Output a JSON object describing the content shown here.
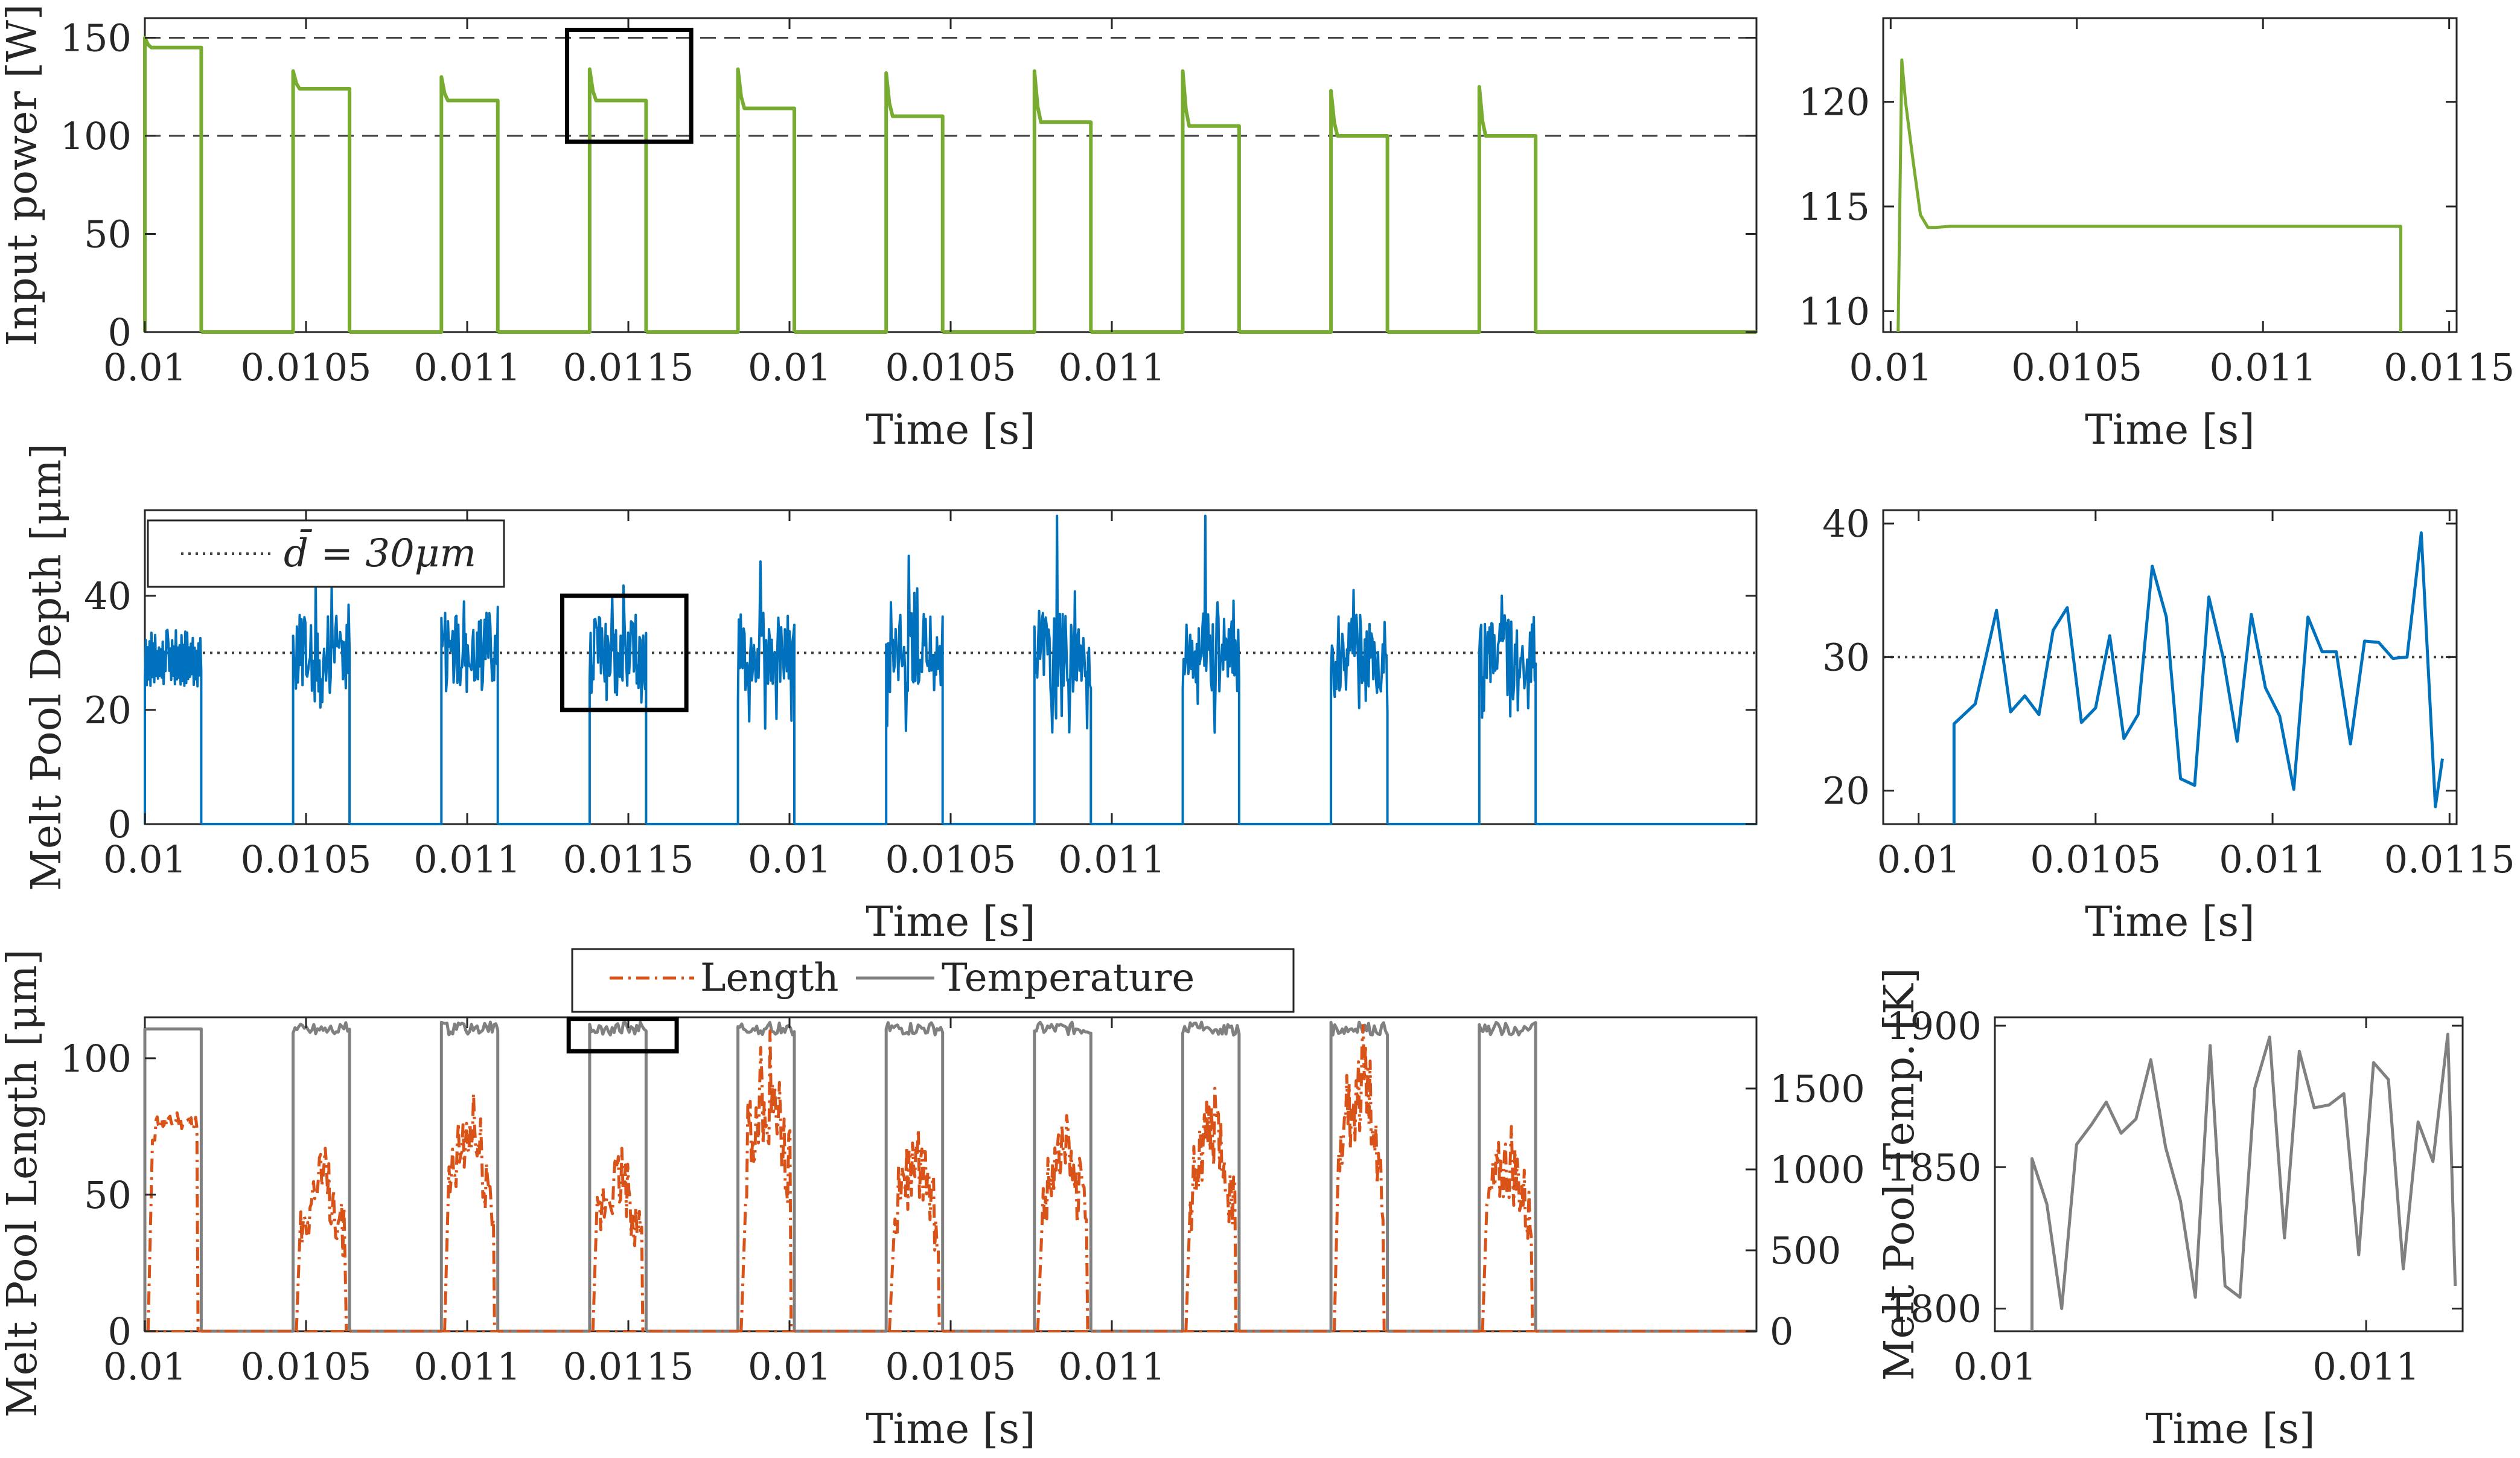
{
  "figure": {
    "colors": {
      "power": "#77ac30",
      "depth": "#0072bd",
      "length": "#d95319",
      "temperature": "#808080",
      "reference": "#404040",
      "axes": "#262626"
    },
    "highlight_box_color": "#000000"
  },
  "chart_data": [
    {
      "id": "power-main",
      "type": "line",
      "title": "",
      "xlabel": "Time [s]",
      "ylabel": "Input power [W]",
      "xlim": [
        0,
        1.0
      ],
      "ylim": [
        0,
        160
      ],
      "xticks": [
        {
          "at": 0.0,
          "label": "0.01"
        },
        {
          "at": 0.1,
          "label": "0.0105"
        },
        {
          "at": 0.2,
          "label": "0.011"
        },
        {
          "at": 0.3,
          "label": "0.0115"
        },
        {
          "at": 0.4,
          "label": "0.01"
        },
        {
          "at": 0.5,
          "label": "0.0105"
        },
        {
          "at": 0.6,
          "label": "0.011"
        }
      ],
      "yticks": [
        0,
        50,
        100,
        150
      ],
      "reference_lines": [
        150,
        100
      ],
      "pulse_starts": [
        0.0,
        0.092,
        0.184,
        0.276,
        0.368,
        0.46,
        0.552,
        0.644,
        0.736,
        0.828
      ],
      "pulse_width": 0.035,
      "pulse_peaks": [
        150,
        133,
        130,
        134,
        134,
        132,
        133,
        133,
        123,
        125
      ],
      "pulse_plateaus": [
        145,
        124,
        118,
        118,
        114,
        110,
        107,
        105,
        100,
        100
      ],
      "zoom_box": {
        "x": [
          0.262,
          0.339
        ],
        "y": [
          97,
          154
        ]
      }
    },
    {
      "id": "power-zoom",
      "type": "line",
      "xlabel": "Time [s]",
      "ylabel": "",
      "xlim": [
        0.00998,
        0.01152
      ],
      "ylim": [
        109,
        124
      ],
      "xticks": [
        {
          "at": 0.01,
          "label": "0.01"
        },
        {
          "at": 0.0105,
          "label": "0.0105"
        },
        {
          "at": 0.011,
          "label": "0.011"
        },
        {
          "at": 0.0115,
          "label": "0.0115"
        }
      ],
      "yticks": [
        110,
        115,
        120
      ],
      "x": [
        0.01002,
        0.01003,
        0.01004,
        0.01006,
        0.01008,
        0.0101,
        0.01012,
        0.01016,
        0.0103,
        0.0106,
        0.011,
        0.0113,
        0.01137,
        0.01137
      ],
      "values": [
        100,
        122,
        120,
        117.2,
        114.6,
        114.0,
        114.0,
        114.05,
        114.05,
        114.05,
        114.05,
        114.05,
        114.05,
        100
      ]
    },
    {
      "id": "depth-main",
      "type": "line",
      "xlabel": "Time [s]",
      "ylabel": "Melt Pool Depth [μm]",
      "xlim": [
        0,
        1.0
      ],
      "ylim": [
        0,
        55
      ],
      "xticks": [
        {
          "at": 0.0,
          "label": "0.01"
        },
        {
          "at": 0.1,
          "label": "0.0105"
        },
        {
          "at": 0.2,
          "label": "0.011"
        },
        {
          "at": 0.3,
          "label": "0.0115"
        },
        {
          "at": 0.4,
          "label": "0.01"
        },
        {
          "at": 0.5,
          "label": "0.0105"
        },
        {
          "at": 0.6,
          "label": "0.011"
        }
      ],
      "yticks": [
        0,
        20,
        40
      ],
      "reference_line": 30,
      "legend": {
        "label_prefix": "d̄ = 30",
        "label_unit": "μm",
        "position": "top-left"
      },
      "pulse_starts": [
        0.0,
        0.092,
        0.184,
        0.276,
        0.368,
        0.46,
        0.552,
        0.644,
        0.736,
        0.828
      ],
      "pulse_width": 0.035,
      "pulse_peaks": [
        34,
        42,
        39,
        40,
        46,
        47,
        54,
        54,
        41,
        40
      ],
      "zoom_box": {
        "x": [
          0.259,
          0.336
        ],
        "y": [
          20,
          40
        ]
      }
    },
    {
      "id": "depth-zoom",
      "type": "line",
      "xlabel": "Time [s]",
      "ylabel": "",
      "xlim": [
        0.0099,
        0.01152
      ],
      "ylim": [
        17.5,
        41
      ],
      "xticks": [
        {
          "at": 0.01,
          "label": "0.01"
        },
        {
          "at": 0.0105,
          "label": "0.0105"
        },
        {
          "at": 0.011,
          "label": "0.011"
        },
        {
          "at": 0.0115,
          "label": "0.0115"
        }
      ],
      "yticks": [
        20,
        30,
        40
      ],
      "reference_line": 30,
      "x": [
        0.0101,
        0.0101,
        0.01016,
        0.01022,
        0.01026,
        0.0103,
        0.01034,
        0.01038,
        0.01042,
        0.01046,
        0.0105,
        0.01054,
        0.01058,
        0.01062,
        0.01066,
        0.0107,
        0.01074,
        0.01078,
        0.01082,
        0.01086,
        0.0109,
        0.01094,
        0.01098,
        0.01102,
        0.01106,
        0.0111,
        0.01114,
        0.01118,
        0.01122,
        0.01126,
        0.0113,
        0.01134,
        0.01138,
        0.01142,
        0.01146,
        0.01148
      ],
      "values": [
        17.5,
        25.0,
        26.5,
        33.5,
        25.9,
        27.1,
        25.7,
        32.0,
        33.7,
        25.1,
        26.2,
        31.6,
        23.9,
        25.7,
        36.8,
        33.0,
        20.9,
        20.4,
        34.5,
        30.0,
        23.7,
        33.2,
        27.7,
        25.6,
        20.1,
        33.0,
        30.4,
        30.4,
        23.5,
        31.2,
        31.1,
        29.9,
        30.0,
        39.3,
        18.8,
        22.4
      ]
    },
    {
      "id": "length-temp-main",
      "type": "line",
      "xlabel": "Time [s]",
      "ylabel": "Melt Pool Length [μm]",
      "y2label": "Melt Pool Temp. [K]",
      "xlim": [
        0,
        1.0
      ],
      "ylim": [
        0,
        115
      ],
      "y2lim": [
        0,
        1940
      ],
      "xticks": [
        {
          "at": 0.0,
          "label": "0.01"
        },
        {
          "at": 0.1,
          "label": "0.0105"
        },
        {
          "at": 0.2,
          "label": "0.011"
        },
        {
          "at": 0.3,
          "label": "0.0115"
        },
        {
          "at": 0.4,
          "label": "0.01"
        },
        {
          "at": 0.5,
          "label": "0.0105"
        },
        {
          "at": 0.6,
          "label": "0.011"
        }
      ],
      "yticks": [
        0,
        50,
        100
      ],
      "y2ticks": [
        0,
        500,
        1000,
        1500
      ],
      "legend": {
        "entries": [
          "Length",
          "Temperature"
        ],
        "position": "top-center-outside"
      },
      "pulse_starts": [
        0.0,
        0.092,
        0.184,
        0.276,
        0.368,
        0.46,
        0.552,
        0.644,
        0.736,
        0.828
      ],
      "pulse_width": 0.035,
      "temperature_plateau": 1860,
      "length_peaks": [
        80,
        67,
        87,
        67,
        110,
        74,
        79,
        89,
        112,
        75
      ],
      "zoom_box": {
        "x": [
          0.263,
          0.33
        ],
        "y2": [
          1730,
          1930
        ]
      }
    },
    {
      "id": "temp-zoom",
      "type": "line",
      "xlabel": "Time [s]",
      "ylabel": "Melt Pool Temp. [K]",
      "xlim": [
        0.01,
        0.01126
      ],
      "ylim": [
        1792,
        1903
      ],
      "xticks": [
        {
          "at": 0.01,
          "label": "0.01"
        },
        {
          "at": 0.011,
          "label": "0.011"
        }
      ],
      "yticks": [
        1800,
        1850,
        1900
      ],
      "x": [
        0.0101,
        0.0101,
        0.01014,
        0.01018,
        0.01022,
        0.01026,
        0.0103,
        0.01034,
        0.01038,
        0.01042,
        0.01046,
        0.0105,
        0.01054,
        0.01058,
        0.01062,
        0.01066,
        0.0107,
        0.01074,
        0.01078,
        0.01082,
        0.01086,
        0.0109,
        0.01094,
        0.01098,
        0.01102,
        0.01106,
        0.0111,
        0.01114,
        0.01118,
        0.01122,
        0.01124
      ],
      "values": [
        1792,
        1853,
        1837,
        1800,
        1858,
        1865,
        1873,
        1862,
        1867,
        1888,
        1857,
        1838,
        1804,
        1893,
        1808,
        1804,
        1878,
        1896,
        1825,
        1891,
        1871,
        1872,
        1876,
        1819,
        1887,
        1881,
        1814,
        1866,
        1852,
        1897,
        1808
      ]
    }
  ]
}
